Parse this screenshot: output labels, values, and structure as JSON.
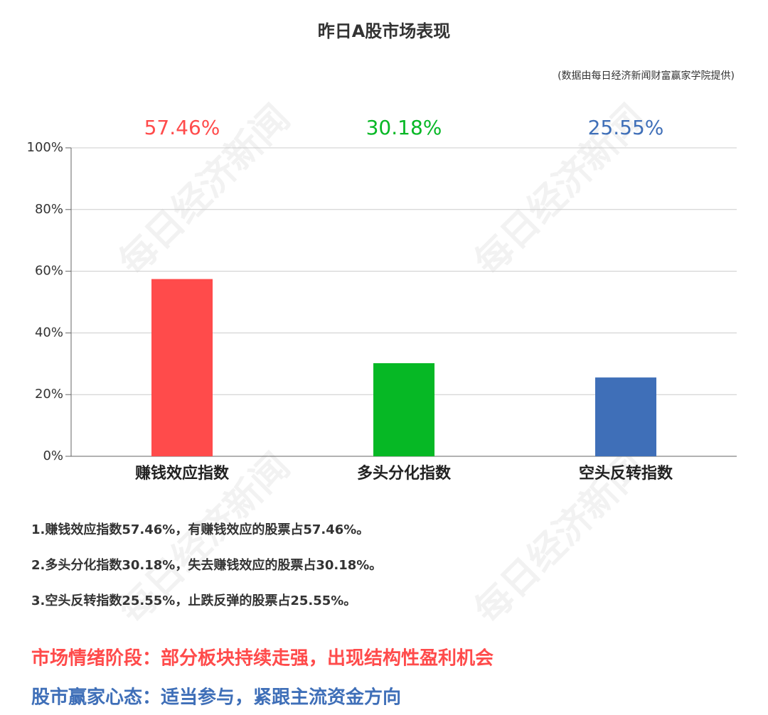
{
  "chart_data": {
    "type": "bar",
    "title": "昨日A股市场表现",
    "subtitle": "(数据由每日经济新闻财富赢家学院提供)",
    "categories": [
      "赚钱效应指数",
      "多头分化指数",
      "空头反转指数"
    ],
    "values": [
      57.46,
      30.18,
      25.55
    ],
    "value_labels": [
      "57.46%",
      "30.18%",
      "25.55%"
    ],
    "colors": [
      "#ff4b4b",
      "#06b825",
      "#3f6fb8"
    ],
    "ylim": [
      0,
      100
    ],
    "yticks": [
      {
        "value": 0,
        "label": "0%"
      },
      {
        "value": 20,
        "label": "20%"
      },
      {
        "value": 40,
        "label": "40%"
      },
      {
        "value": 60,
        "label": "60%"
      },
      {
        "value": 80,
        "label": "80%"
      },
      {
        "value": 100,
        "label": "100%"
      }
    ],
    "grid": true
  },
  "watermark": "每日经济新闻",
  "notes": [
    "1.赚钱效应指数57.46%，有赚钱效应的股票占57.46%。",
    "2.多头分化指数30.18%，失去赚钱效应的股票占30.18%。",
    "3.空头反转指数25.55%，止跌反弹的股票占25.55%。"
  ],
  "conclusions": [
    {
      "text": "市场情绪阶段：部分板块持续走强，出现结构性盈利机会",
      "color": "#ff4b4b"
    },
    {
      "text": "股市赢家心态：适当参与，紧跟主流资金方向",
      "color": "#3f6fb8"
    }
  ]
}
